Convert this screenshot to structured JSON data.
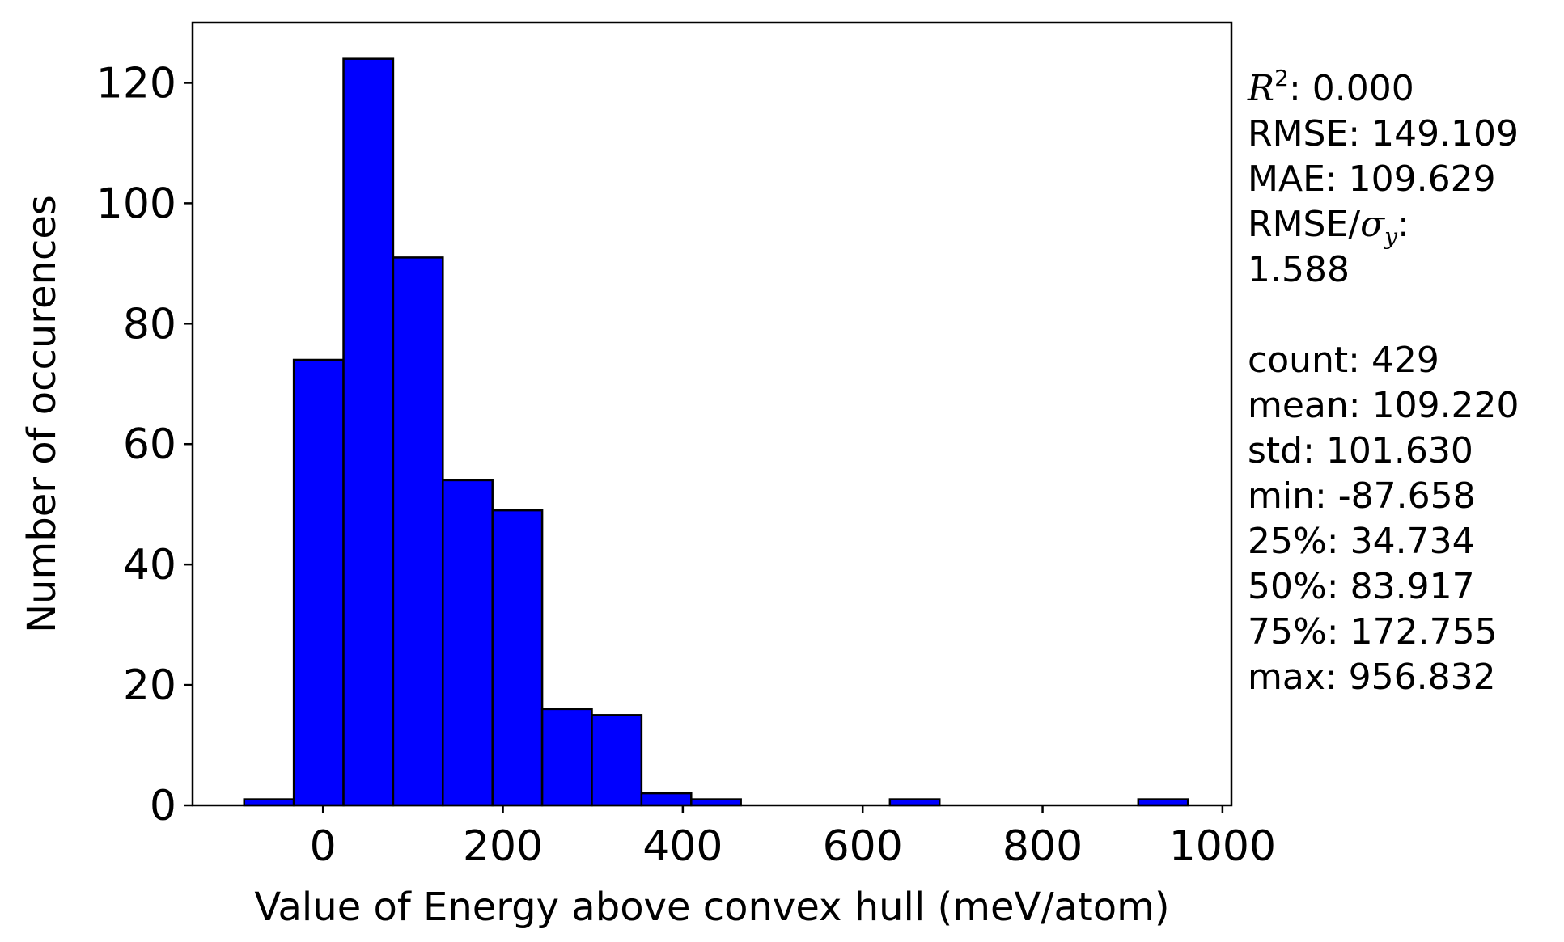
{
  "chart_data": {
    "type": "bar",
    "xlabel": "Value of Energy above convex hull (meV/atom)",
    "ylabel": "Number of occurences",
    "xlim": [
      -145,
      1010
    ],
    "ylim": [
      0,
      130
    ],
    "xticks": [
      0,
      200,
      400,
      600,
      800,
      1000
    ],
    "yticks": [
      0,
      20,
      40,
      60,
      80,
      100,
      120
    ],
    "bar_color": "#0000ff",
    "edge_color": "#000000",
    "bins": [
      {
        "start": -87.658,
        "end": -32.433,
        "count": 1
      },
      {
        "start": -32.433,
        "end": 22.791,
        "count": 74
      },
      {
        "start": 22.791,
        "end": 78.016,
        "count": 124
      },
      {
        "start": 78.016,
        "end": 133.241,
        "count": 91
      },
      {
        "start": 133.241,
        "end": 188.465,
        "count": 54
      },
      {
        "start": 188.465,
        "end": 243.69,
        "count": 49
      },
      {
        "start": 243.69,
        "end": 298.915,
        "count": 16
      },
      {
        "start": 298.915,
        "end": 354.139,
        "count": 15
      },
      {
        "start": 354.139,
        "end": 409.364,
        "count": 2
      },
      {
        "start": 409.364,
        "end": 464.589,
        "count": 1
      },
      {
        "start": 464.589,
        "end": 519.813,
        "count": 0
      },
      {
        "start": 519.813,
        "end": 575.038,
        "count": 0
      },
      {
        "start": 575.038,
        "end": 630.263,
        "count": 0
      },
      {
        "start": 630.263,
        "end": 685.487,
        "count": 1
      },
      {
        "start": 685.487,
        "end": 740.712,
        "count": 0
      },
      {
        "start": 740.712,
        "end": 795.937,
        "count": 0
      },
      {
        "start": 795.937,
        "end": 851.161,
        "count": 0
      },
      {
        "start": 851.161,
        "end": 906.386,
        "count": 0
      },
      {
        "start": 906.386,
        "end": 961.611,
        "count": 1
      }
    ]
  },
  "stats": {
    "r2_label": "R",
    "r2_sup": "2",
    "r2_value": ": 0.000",
    "rmse": "RMSE: 149.109",
    "mae": "MAE: 109.629",
    "rmse_sigma_prefix": "RMSE/",
    "rmse_sigma_symbol": "σ",
    "rmse_sigma_sub": "y",
    "rmse_sigma_suffix": ":",
    "rmse_sigma_value": "1.588",
    "count": "count: 429",
    "mean": "mean: 109.220",
    "std": "std: 101.630",
    "min": "min: -87.658",
    "p25": "25%: 34.734",
    "p50": "50%: 83.917",
    "p75": "75%: 172.755",
    "max": "max: 956.832"
  }
}
